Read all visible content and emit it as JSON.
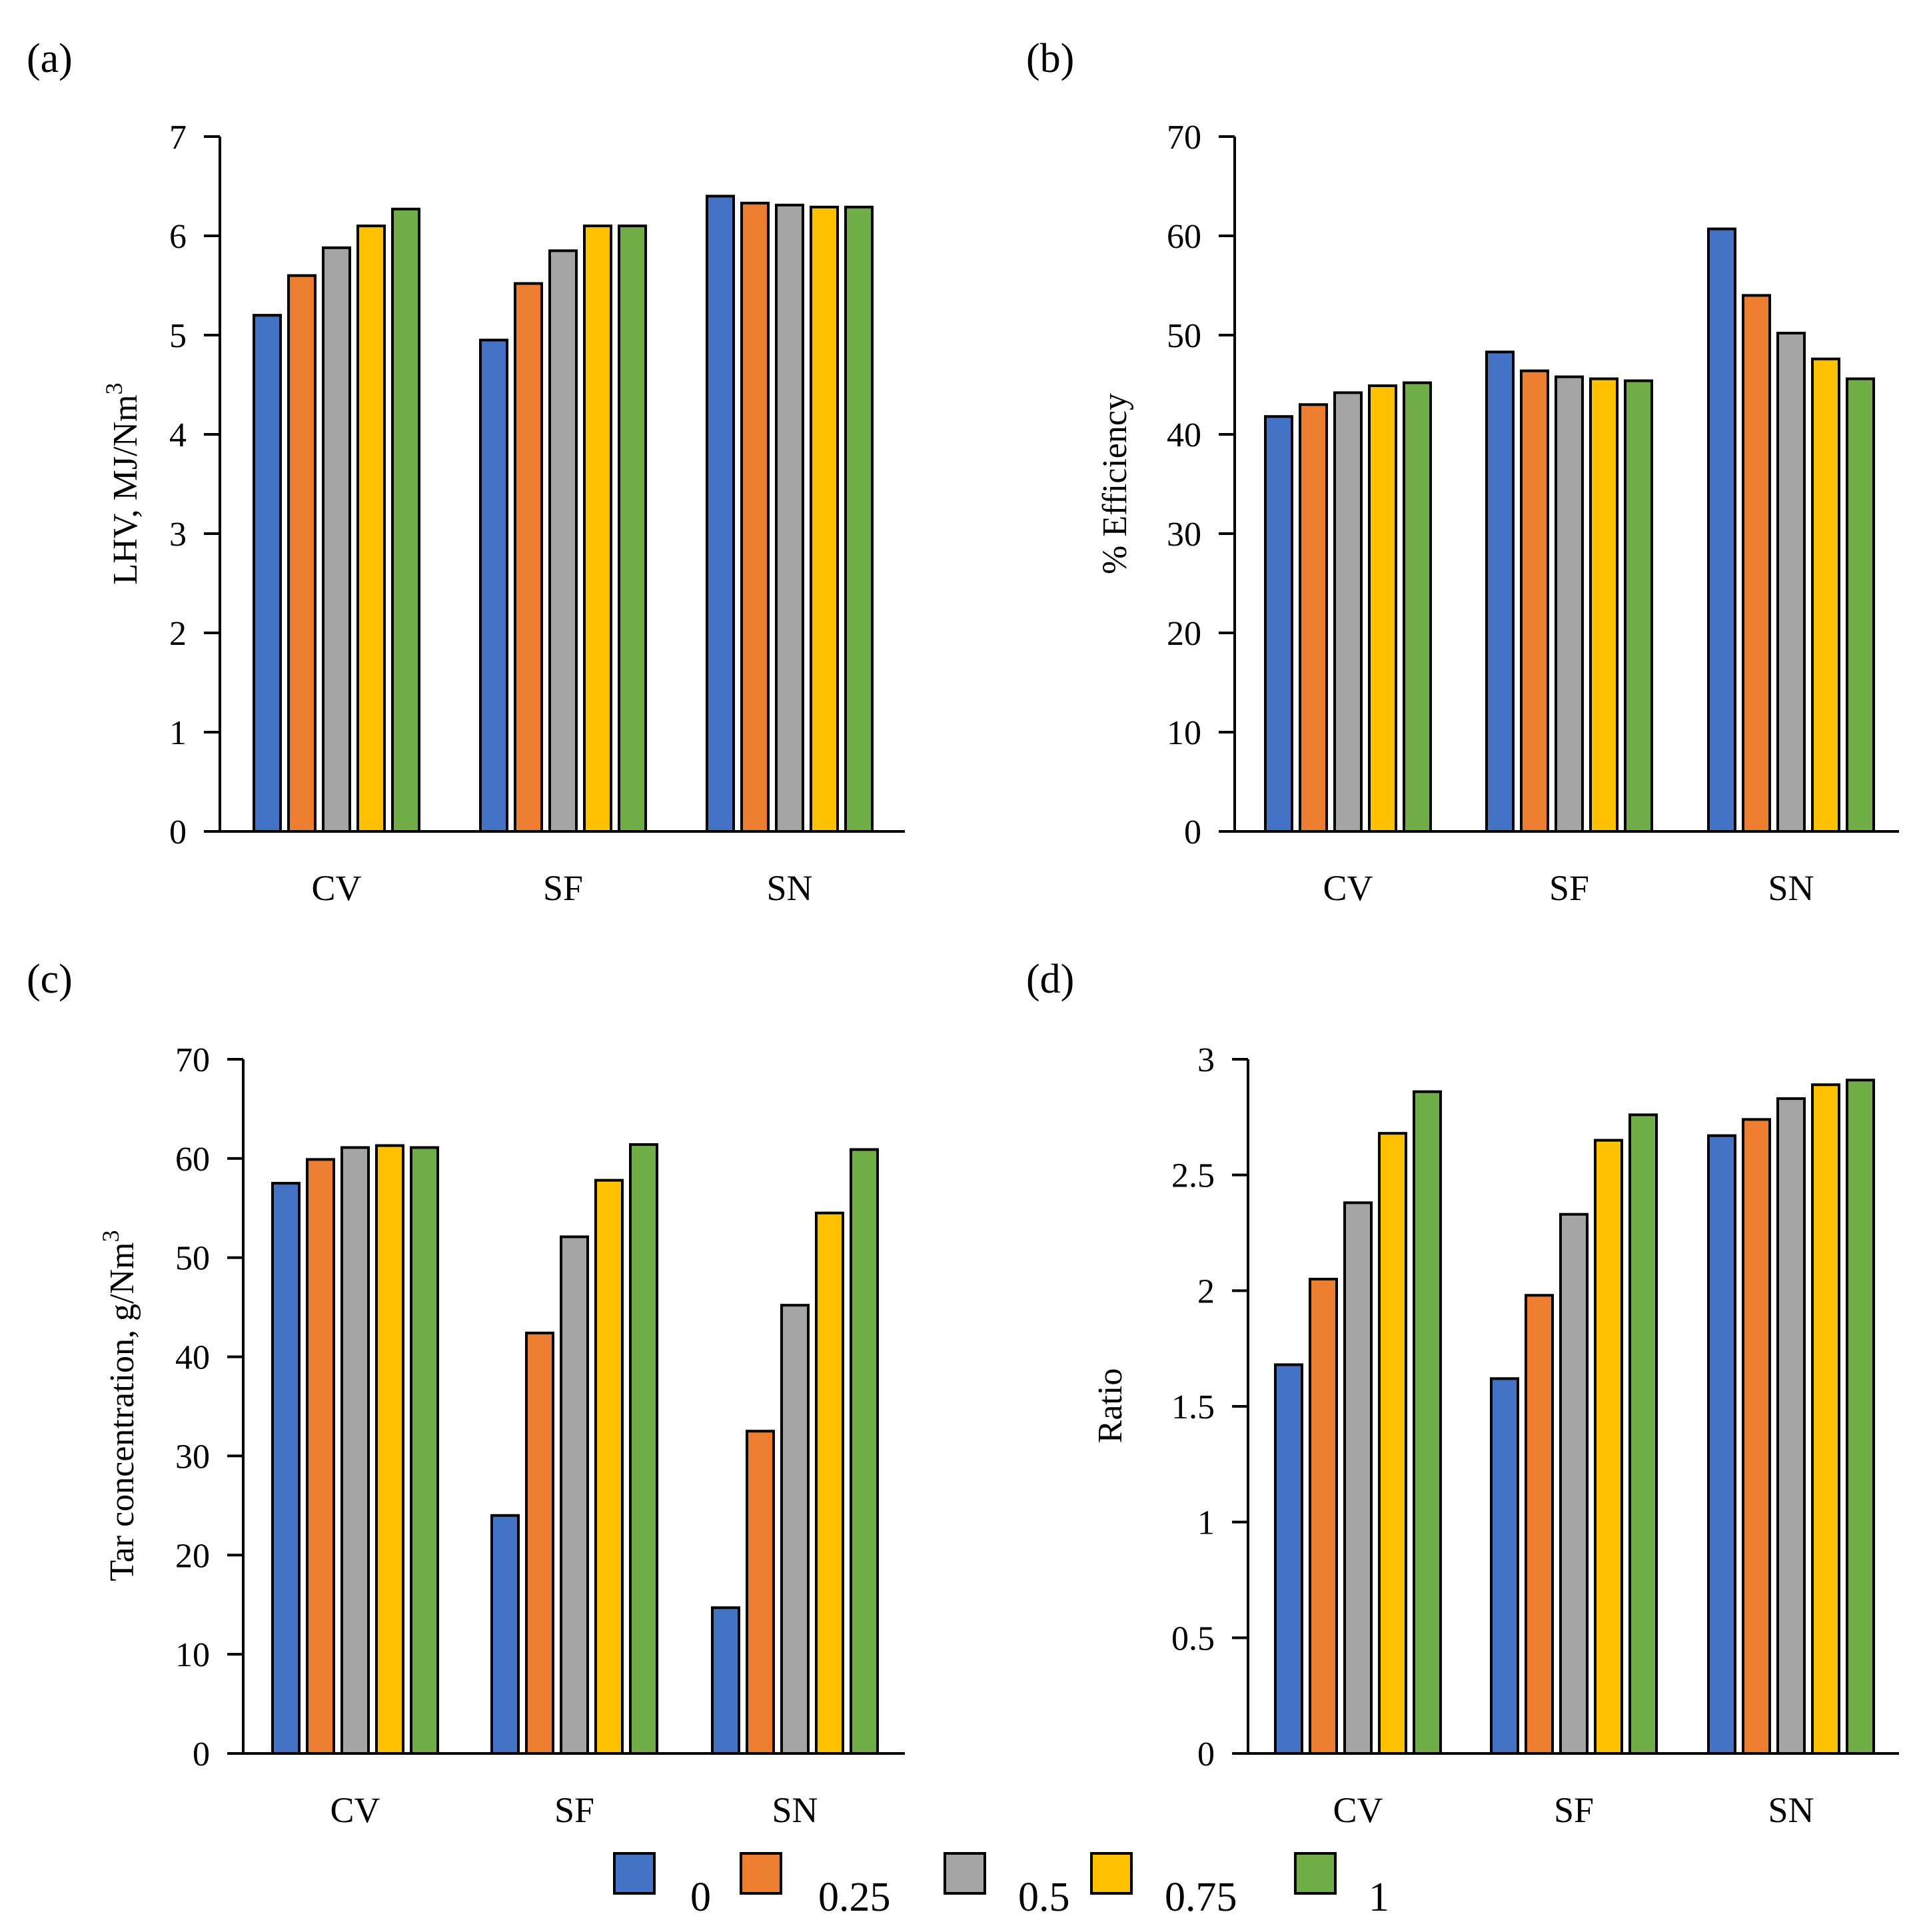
{
  "figure": {
    "legend": [
      {
        "label": "0",
        "color": "#4472C4"
      },
      {
        "label": "0.25",
        "color": "#ED7D31"
      },
      {
        "label": "0.5",
        "color": "#A5A5A5"
      },
      {
        "label": "0.75",
        "color": "#FFC000"
      },
      {
        "label": "1",
        "color": "#70AD47"
      }
    ]
  },
  "chart_data": [
    {
      "type": "bar",
      "panel": "(a)",
      "title": "",
      "xlabel": "",
      "ylabel": "LHV, MJ/Nm",
      "ylabel_superscript": "3",
      "categories": [
        "CV",
        "SF",
        "SN"
      ],
      "ylim": [
        0,
        7
      ],
      "yticks": [
        0,
        1,
        2,
        3,
        4,
        5,
        6,
        7
      ],
      "ytick_labels": [
        "0",
        "1",
        "2",
        "3",
        "4",
        "5",
        "6",
        "7"
      ],
      "series": [
        {
          "name": "0",
          "values": [
            5.2,
            4.95,
            6.4
          ]
        },
        {
          "name": "0.25",
          "values": [
            5.6,
            5.52,
            6.33
          ]
        },
        {
          "name": "0.5",
          "values": [
            5.88,
            5.85,
            6.31
          ]
        },
        {
          "name": "0.75",
          "values": [
            6.1,
            6.1,
            6.29
          ]
        },
        {
          "name": "1",
          "values": [
            6.27,
            6.1,
            6.29
          ]
        }
      ]
    },
    {
      "type": "bar",
      "panel": "(b)",
      "title": "",
      "xlabel": "",
      "ylabel": "% Efficiency",
      "ylabel_superscript": "",
      "categories": [
        "CV",
        "SF",
        "SN"
      ],
      "ylim": [
        0,
        70
      ],
      "yticks": [
        0,
        10,
        20,
        30,
        40,
        50,
        60,
        70
      ],
      "ytick_labels": [
        "0",
        "10",
        "20",
        "30",
        "40",
        "50",
        "60",
        "70"
      ],
      "series": [
        {
          "name": "0",
          "values": [
            41.8,
            48.3,
            60.7
          ]
        },
        {
          "name": "0.25",
          "values": [
            43.0,
            46.4,
            54.0
          ]
        },
        {
          "name": "0.5",
          "values": [
            44.2,
            45.8,
            50.2
          ]
        },
        {
          "name": "0.75",
          "values": [
            44.9,
            45.6,
            47.6
          ]
        },
        {
          "name": "1",
          "values": [
            45.2,
            45.4,
            45.6
          ]
        }
      ]
    },
    {
      "type": "bar",
      "panel": "(c)",
      "title": "",
      "xlabel": "",
      "ylabel": "Tar concentration, g/Nm",
      "ylabel_superscript": "3",
      "categories": [
        "CV",
        "SF",
        "SN"
      ],
      "ylim": [
        0,
        70
      ],
      "yticks": [
        0,
        10,
        20,
        30,
        40,
        50,
        60,
        70
      ],
      "ytick_labels": [
        "0",
        "10",
        "20",
        "30",
        "40",
        "50",
        "60",
        "70"
      ],
      "series": [
        {
          "name": "0",
          "values": [
            57.5,
            24.0,
            14.7
          ]
        },
        {
          "name": "0.25",
          "values": [
            59.9,
            42.4,
            32.5
          ]
        },
        {
          "name": "0.5",
          "values": [
            61.1,
            52.1,
            45.2
          ]
        },
        {
          "name": "0.75",
          "values": [
            61.3,
            57.8,
            54.5
          ]
        },
        {
          "name": "1",
          "values": [
            61.1,
            61.4,
            60.9
          ]
        }
      ]
    },
    {
      "type": "bar",
      "panel": "(d)",
      "title": "",
      "xlabel": "",
      "ylabel": "Ratio",
      "ylabel_superscript": "",
      "categories": [
        "CV",
        "SF",
        "SN"
      ],
      "ylim": [
        0,
        3
      ],
      "yticks": [
        0,
        0.5,
        1,
        1.5,
        2,
        2.5,
        3
      ],
      "ytick_labels": [
        "0",
        "0.5",
        "1",
        "1.5",
        "2",
        "2.5",
        "3"
      ],
      "series": [
        {
          "name": "0",
          "values": [
            1.68,
            1.62,
            2.67
          ]
        },
        {
          "name": "0.25",
          "values": [
            2.05,
            1.98,
            2.74
          ]
        },
        {
          "name": "0.5",
          "values": [
            2.38,
            2.33,
            2.83
          ]
        },
        {
          "name": "0.75",
          "values": [
            2.68,
            2.65,
            2.89
          ]
        },
        {
          "name": "1",
          "values": [
            2.86,
            2.76,
            2.91
          ]
        }
      ]
    }
  ]
}
